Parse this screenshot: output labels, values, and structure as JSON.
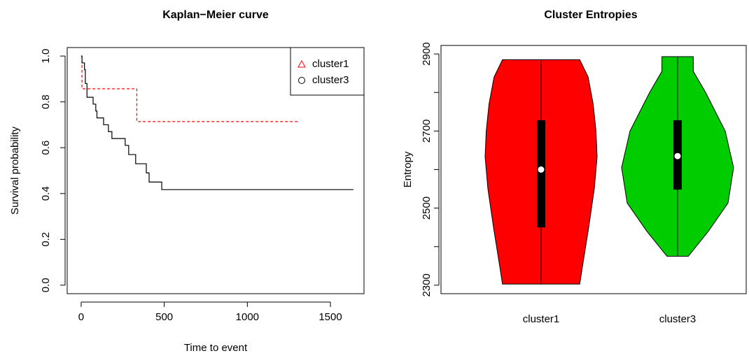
{
  "chart_data": [
    {
      "type": "step",
      "title": "Kaplan−Meier curve",
      "x_label": "Time to event",
      "y_label": "Survival probability",
      "xlim": [
        -84,
        1702
      ],
      "ylim": [
        -0.037,
        1.037
      ],
      "xticks": [
        0,
        500,
        1000,
        1500
      ],
      "yticks": [
        {
          "value": 0,
          "label": "0.0"
        },
        0.2,
        0.4,
        0.6,
        0.8,
        {
          "value": 1,
          "label": "1.0"
        }
      ],
      "legend": "top-right",
      "series": [
        {
          "name": "cluster1",
          "color": "#ff0000",
          "dashed": true,
          "marker": "triangle",
          "x": [
            0,
            5,
            5,
            335,
            335,
            1310
          ],
          "values": [
            1,
            1,
            0.857,
            0.857,
            0.714,
            0.714
          ]
        },
        {
          "name": "cluster3",
          "color": "#000000",
          "dashed": false,
          "marker": "circle",
          "x": [
            0,
            5,
            5,
            20,
            20,
            25,
            25,
            35,
            35,
            72,
            72,
            88,
            88,
            95,
            95,
            135,
            135,
            164,
            164,
            185,
            185,
            265,
            265,
            286,
            286,
            328,
            328,
            392,
            392,
            409,
            409,
            485,
            485,
            1638
          ],
          "values": [
            1,
            1,
            0.97,
            0.97,
            0.94,
            0.94,
            0.88,
            0.88,
            0.82,
            0.82,
            0.79,
            0.79,
            0.76,
            0.76,
            0.73,
            0.73,
            0.7,
            0.7,
            0.67,
            0.67,
            0.64,
            0.64,
            0.61,
            0.61,
            0.57,
            0.57,
            0.53,
            0.53,
            0.49,
            0.49,
            0.45,
            0.45,
            0.417,
            0.417
          ]
        }
      ]
    },
    {
      "type": "violin",
      "title": "Cluster Entropies",
      "y_label": "Entropy",
      "categories": [
        "cluster1",
        "cluster3"
      ],
      "colors": [
        "#ff0000",
        "#00cc00"
      ],
      "min": [
        2303,
        2375
      ],
      "q1": [
        2450,
        2548
      ],
      "median": [
        2600,
        2635
      ],
      "q3": [
        2728,
        2728
      ],
      "max": [
        2885,
        2893
      ],
      "density_y": [
        [
          2303,
          2350,
          2450,
          2550,
          2633,
          2700,
          2770,
          2840,
          2885
        ],
        [
          2375,
          2440,
          2513,
          2605,
          2700,
          2800,
          2855,
          2893
        ]
      ],
      "density": [
        [
          0.69,
          0.74,
          0.85,
          0.95,
          1.0,
          0.98,
          0.93,
          0.84,
          0.69
        ],
        [
          0.19,
          0.55,
          0.9,
          1.0,
          0.85,
          0.5,
          0.28,
          0.28
        ]
      ],
      "ylim": [
        2278,
        2922
      ],
      "yticks": [
        2300,
        2500,
        2700,
        2900
      ],
      "minor_yticks": [
        2400,
        2600,
        2800
      ]
    }
  ]
}
